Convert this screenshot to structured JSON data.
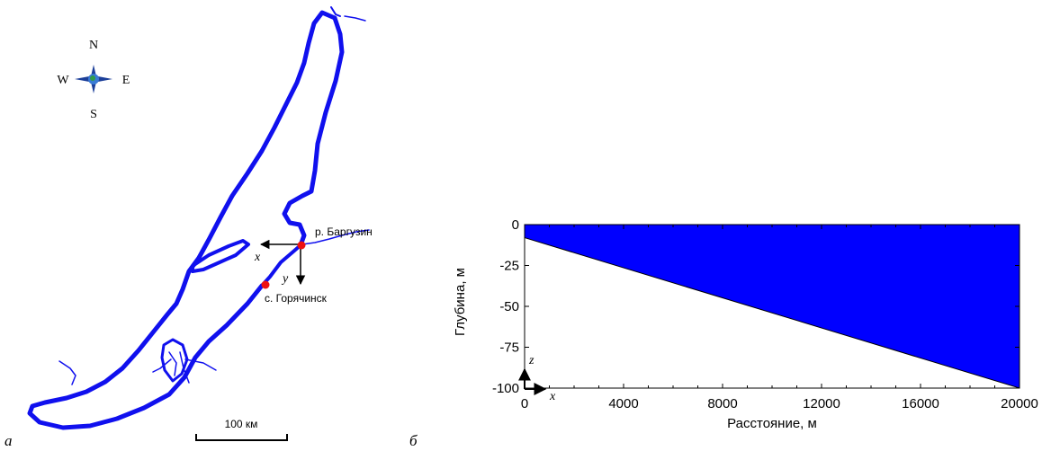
{
  "panel_a": {
    "label": "а",
    "compass": {
      "n": "N",
      "s": "S",
      "w": "W",
      "e": "E"
    },
    "points": {
      "barguzin": "р. Баргузин",
      "goryachinsk": "с. Горячинск"
    },
    "axes": {
      "x": "x",
      "y": "y"
    },
    "scale_bar": "100 км",
    "colors": {
      "lake": "#1010ee",
      "point": "#ee1111"
    }
  },
  "panel_b": {
    "label": "б",
    "axis_marks": {
      "z": "z",
      "x": "x"
    },
    "chart_data": {
      "type": "area",
      "xlabel": "Расстояние, м",
      "ylabel": "Глубина, м",
      "xlim": [
        0,
        20000
      ],
      "ylim": [
        -100,
        0
      ],
      "xticks": [
        "0",
        "4000",
        "8000",
        "12000",
        "16000",
        "20000"
      ],
      "yticks": [
        "0",
        "-25",
        "-50",
        "-75",
        "-100"
      ],
      "polygon": [
        {
          "x": 0,
          "y": 0
        },
        {
          "x": 20000,
          "y": 0
        },
        {
          "x": 20000,
          "y": -100
        },
        {
          "x": 0,
          "y": -8
        }
      ],
      "fill": "#0000ff"
    }
  }
}
